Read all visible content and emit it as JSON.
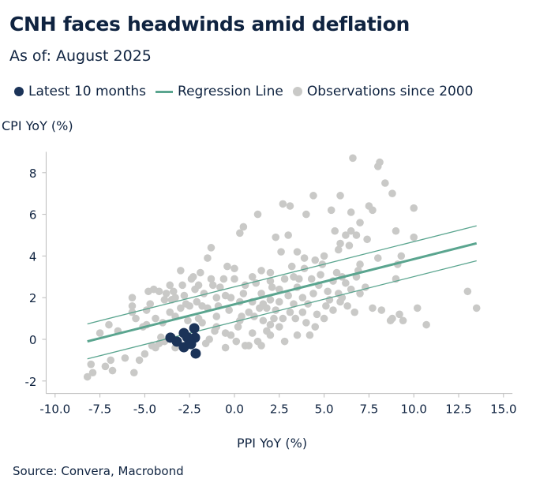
{
  "title": "CNH faces headwinds amid deflation",
  "subtitle": "As of: August 2025",
  "source": "Source: Convera, Macrobond",
  "colors": {
    "latest": "#1b3358",
    "regression": "#5aa58f",
    "observations": "#c9c9c7",
    "text": "#0f2340"
  },
  "chart_data": {
    "type": "scatter",
    "xlabel": "PPI YoY (%)",
    "ylabel": "CPI YoY (%)",
    "xlim": [
      -10.5,
      15.5
    ],
    "ylim": [
      -2.6,
      9.0
    ],
    "xticks": [
      "-10.0",
      "-7.5",
      "-5.0",
      "-2.5",
      "0.0",
      "2.5",
      "5.0",
      "7.5",
      "10.0",
      "12.5",
      "15.0"
    ],
    "yticks": [
      "-2",
      "0",
      "2",
      "4",
      "6",
      "8"
    ],
    "grid": false,
    "legend_position": "top-left",
    "legend": [
      "Latest 10 months",
      "Regression Line",
      "Observations since 2000"
    ],
    "regression": {
      "slope": 0.217,
      "intercept": 1.68,
      "x_range": [
        -8.2,
        13.5
      ],
      "band": 0.84
    },
    "latest": [
      [
        -3.57,
        0.08
      ],
      [
        -3.21,
        -0.11
      ],
      [
        -2.82,
        0.3
      ],
      [
        -2.24,
        0.53
      ],
      [
        -2.2,
        0.08
      ],
      [
        -2.51,
        -0.08
      ],
      [
        -2.82,
        -0.38
      ],
      [
        -2.16,
        -0.68
      ],
      [
        -2.64,
        0.11
      ],
      [
        -2.42,
        -0.23
      ]
    ],
    "observations": [
      [
        -8.2,
        -1.8
      ],
      [
        -7.9,
        -1.6
      ],
      [
        -8.0,
        -1.2
      ],
      [
        -7.2,
        -1.3
      ],
      [
        -6.8,
        -1.5
      ],
      [
        -6.9,
        -1.0
      ],
      [
        -6.1,
        -0.9
      ],
      [
        -5.6,
        -1.6
      ],
      [
        -5.3,
        -1.0
      ],
      [
        -5.0,
        -0.7
      ],
      [
        -4.6,
        -0.3
      ],
      [
        -4.2,
        -0.2
      ],
      [
        -4.9,
        0.7
      ],
      [
        -5.5,
        1.0
      ],
      [
        -5.7,
        1.3
      ],
      [
        -5.7,
        1.6
      ],
      [
        -5.7,
        2.0
      ],
      [
        -4.9,
        1.4
      ],
      [
        -4.7,
        1.7
      ],
      [
        -4.8,
        2.3
      ],
      [
        -4.2,
        2.3
      ],
      [
        -4.0,
        0.8
      ],
      [
        -3.6,
        2.6
      ],
      [
        -3.5,
        1.9
      ],
      [
        -3.0,
        3.3
      ],
      [
        -2.9,
        2.6
      ],
      [
        -2.5,
        1.6
      ],
      [
        -2.2,
        2.4
      ],
      [
        -2.1,
        1.8
      ],
      [
        -1.2,
        2.6
      ],
      [
        -1.5,
        3.9
      ],
      [
        -1.3,
        4.4
      ],
      [
        -0.4,
        3.5
      ],
      [
        0.0,
        3.4
      ],
      [
        0.3,
        5.1
      ],
      [
        0.5,
        5.4
      ],
      [
        -1.8,
        0.8
      ],
      [
        -1.4,
        0.0
      ],
      [
        -1.0,
        0.6
      ],
      [
        -0.5,
        -0.4
      ],
      [
        -0.2,
        0.2
      ],
      [
        0.2,
        0.6
      ],
      [
        0.4,
        1.1
      ],
      [
        0.6,
        -0.3
      ],
      [
        1.0,
        0.3
      ],
      [
        1.3,
        -0.1
      ],
      [
        1.6,
        0.9
      ],
      [
        2.0,
        0.7
      ],
      [
        2.3,
        1.4
      ],
      [
        2.7,
        1.0
      ],
      [
        2.0,
        1.9
      ],
      [
        1.5,
        2.2
      ],
      [
        1.0,
        1.8
      ],
      [
        0.6,
        2.6
      ],
      [
        1.2,
        2.7
      ],
      [
        2.0,
        2.8
      ],
      [
        2.5,
        2.4
      ],
      [
        2.8,
        2.9
      ],
      [
        3.0,
        2.1
      ],
      [
        3.3,
        1.7
      ],
      [
        3.5,
        2.5
      ],
      [
        3.8,
        2.0
      ],
      [
        3.1,
        1.3
      ],
      [
        2.5,
        0.6
      ],
      [
        2.8,
        -0.1
      ],
      [
        3.5,
        0.2
      ],
      [
        4.0,
        0.8
      ],
      [
        4.2,
        0.2
      ],
      [
        4.5,
        0.6
      ],
      [
        5.0,
        1.0
      ],
      [
        5.1,
        1.6
      ],
      [
        5.5,
        1.4
      ],
      [
        5.9,
        1.8
      ],
      [
        6.3,
        1.6
      ],
      [
        6.7,
        1.3
      ],
      [
        7.0,
        2.2
      ],
      [
        6.2,
        2.7
      ],
      [
        6.8,
        3.0
      ],
      [
        7.0,
        3.6
      ],
      [
        7.3,
        2.5
      ],
      [
        5.7,
        3.2
      ],
      [
        4.9,
        3.6
      ],
      [
        4.5,
        3.8
      ],
      [
        3.9,
        3.4
      ],
      [
        3.2,
        3.5
      ],
      [
        2.6,
        4.2
      ],
      [
        2.3,
        4.9
      ],
      [
        3.0,
        5.0
      ],
      [
        2.7,
        6.5
      ],
      [
        3.1,
        6.4
      ],
      [
        4.4,
        6.9
      ],
      [
        5.4,
        6.2
      ],
      [
        5.6,
        5.2
      ],
      [
        5.9,
        4.6
      ],
      [
        6.2,
        5.0
      ],
      [
        6.5,
        5.2
      ],
      [
        7.0,
        5.6
      ],
      [
        6.8,
        5.0
      ],
      [
        7.4,
        4.8
      ],
      [
        8.0,
        3.9
      ],
      [
        9.0,
        5.2
      ],
      [
        10.0,
        4.9
      ],
      [
        9.3,
        4.0
      ],
      [
        9.1,
        3.6
      ],
      [
        9.0,
        2.9
      ],
      [
        7.7,
        1.5
      ],
      [
        8.2,
        1.4
      ],
      [
        8.8,
        1.0
      ],
      [
        9.2,
        1.2
      ],
      [
        10.2,
        1.5
      ],
      [
        10.7,
        0.7
      ],
      [
        9.4,
        0.9
      ],
      [
        8.7,
        0.9
      ],
      [
        13.0,
        2.3
      ],
      [
        13.5,
        1.5
      ],
      [
        6.6,
        8.7
      ],
      [
        8.0,
        8.3
      ],
      [
        8.1,
        8.5
      ],
      [
        8.4,
        7.5
      ],
      [
        8.8,
        7.0
      ],
      [
        5.9,
        6.9
      ],
      [
        10.0,
        6.3
      ],
      [
        7.5,
        6.4
      ],
      [
        7.7,
        6.2
      ],
      [
        6.5,
        6.1
      ],
      [
        4.0,
        6.0
      ],
      [
        1.3,
        6.0
      ],
      [
        -0.5,
        2.1
      ],
      [
        -0.3,
        1.4
      ],
      [
        -1.0,
        1.1
      ],
      [
        -1.5,
        1.5
      ],
      [
        -2.0,
        1.0
      ],
      [
        -2.6,
        0.9
      ],
      [
        -3.0,
        1.5
      ],
      [
        -3.3,
        1.1
      ],
      [
        -3.6,
        1.3
      ],
      [
        -3.9,
        1.9
      ],
      [
        -3.3,
        2.0
      ],
      [
        -2.8,
        2.1
      ],
      [
        -2.4,
        2.9
      ],
      [
        -2.0,
        2.6
      ],
      [
        -1.7,
        2.2
      ],
      [
        -1.0,
        2.0
      ],
      [
        -0.8,
        2.5
      ],
      [
        -0.2,
        2.0
      ],
      [
        0.3,
        1.8
      ],
      [
        0.8,
        1.3
      ],
      [
        1.1,
        1.1
      ],
      [
        1.4,
        1.5
      ],
      [
        1.8,
        1.5
      ],
      [
        2.2,
        1.0
      ],
      [
        1.8,
        0.4
      ],
      [
        1.5,
        -0.3
      ],
      [
        0.8,
        -0.3
      ],
      [
        0.1,
        -0.1
      ],
      [
        -0.5,
        0.3
      ],
      [
        3.8,
        1.3
      ],
      [
        4.1,
        1.7
      ],
      [
        4.4,
        2.2
      ],
      [
        4.7,
        2.6
      ],
      [
        5.2,
        2.3
      ],
      [
        5.5,
        2.8
      ],
      [
        5.8,
        2.2
      ],
      [
        6.0,
        2.0
      ],
      [
        6.5,
        2.4
      ],
      [
        4.3,
        2.9
      ],
      [
        3.6,
        2.9
      ],
      [
        3.3,
        3.0
      ],
      [
        2.0,
        3.2
      ],
      [
        1.5,
        3.3
      ],
      [
        1.0,
        3.0
      ],
      [
        0.5,
        2.2
      ],
      [
        0.0,
        2.9
      ],
      [
        -0.6,
        2.9
      ],
      [
        -1.3,
        2.9
      ],
      [
        -1.9,
        3.2
      ],
      [
        -2.3,
        3.0
      ],
      [
        -3.8,
        2.2
      ],
      [
        -4.4,
        1.0
      ],
      [
        -4.1,
        0.1
      ],
      [
        -3.9,
        -0.1
      ],
      [
        -3.3,
        -0.4
      ],
      [
        -1.6,
        -0.2
      ],
      [
        -1.1,
        0.4
      ],
      [
        0.3,
        0.9
      ],
      [
        2.0,
        0.2
      ],
      [
        2.5,
        1.8
      ],
      [
        3.4,
        1.0
      ],
      [
        4.6,
        1.2
      ],
      [
        5.3,
        1.9
      ],
      [
        6.0,
        3.0
      ],
      [
        6.9,
        3.3
      ],
      [
        6.4,
        4.5
      ],
      [
        5.8,
        4.3
      ],
      [
        5.0,
        4.0
      ],
      [
        4.8,
        3.1
      ],
      [
        3.9,
        3.9
      ],
      [
        3.5,
        4.2
      ],
      [
        2.1,
        2.5
      ],
      [
        1.6,
        1.7
      ],
      [
        -0.9,
        1.6
      ],
      [
        -1.8,
        1.6
      ],
      [
        -2.7,
        1.7
      ],
      [
        -3.4,
        2.3
      ],
      [
        -4.5,
        2.4
      ],
      [
        -5.1,
        0.6
      ],
      [
        -4.4,
        -0.4
      ],
      [
        -7.5,
        0.3
      ],
      [
        -7.0,
        0.7
      ],
      [
        -6.5,
        0.4
      ]
    ]
  }
}
